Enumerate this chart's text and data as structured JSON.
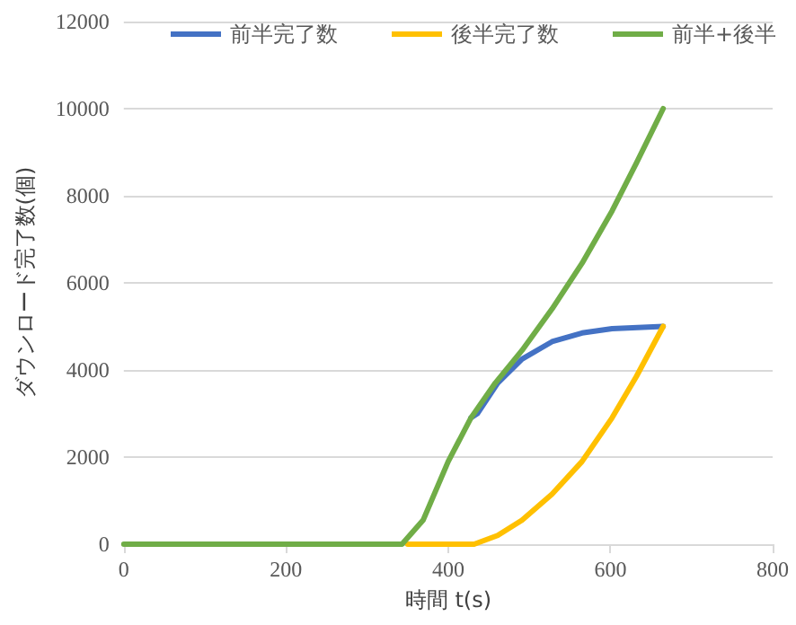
{
  "chart_data": {
    "type": "line",
    "xlabel": "時間 t(s)",
    "ylabel": "ダウンロード完了数(個)",
    "xlim": [
      0,
      800
    ],
    "xticks": [
      0,
      200,
      400,
      600,
      800
    ],
    "ylim": [
      0,
      12000
    ],
    "yticks": [
      0,
      2000,
      4000,
      6000,
      8000,
      10000,
      12000
    ],
    "grid": "y",
    "legend": "top",
    "marker": "none",
    "line_style": "solid",
    "series": [
      {
        "name": "前半完了数",
        "color": "#4472c4",
        "x": [
          428,
          436,
          461,
          491,
          528,
          565,
          602,
          665
        ],
        "values": [
          2900,
          3000,
          3700,
          4250,
          4650,
          4850,
          4950,
          5000
        ]
      },
      {
        "name": "後半完了数",
        "color": "#ffc000",
        "x": [
          350,
          432,
          461,
          491,
          528,
          565,
          602,
          632,
          665
        ],
        "values": [
          0,
          0,
          200,
          550,
          1150,
          1900,
          2900,
          3850,
          5000
        ]
      },
      {
        "name": "前半+後半",
        "color": "#70ad47",
        "x": [
          0,
          343,
          369,
          400,
          428,
          458,
          491,
          528,
          565,
          602,
          632,
          665
        ],
        "values": [
          0,
          0,
          550,
          1900,
          2900,
          3700,
          4450,
          5400,
          6450,
          7650,
          8750,
          10000
        ]
      }
    ]
  }
}
